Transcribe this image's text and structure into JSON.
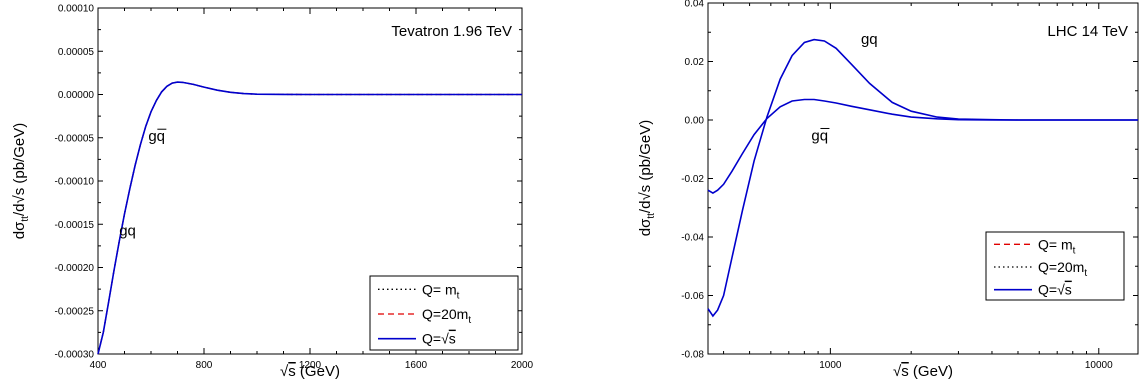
{
  "chart_data": [
    {
      "type": "line",
      "title": "Tevatron 1.96 TeV",
      "xlabel_radicand": "s",
      "xlabel_unit": "(GeV)",
      "ylabel_main": "dσ",
      "ylabel_sub": "tt",
      "ylabel_rest": "/d√s (pb/GeV)",
      "xscale": "linear",
      "xlim": [
        400,
        2000
      ],
      "ylim": [
        -0.0003,
        0.0001
      ],
      "x_ticks": [
        "400",
        "800",
        "1200",
        "1600",
        "2000"
      ],
      "y_ticks": [
        "0.00010",
        "0.00005",
        "0.00000",
        "-0.00005",
        "-0.00010",
        "-0.00015",
        "-0.00020",
        "-0.00025",
        "-0.00030"
      ],
      "legend_placement": "bottom-right",
      "legend": [
        {
          "label_prefix": "Q=  m",
          "label_sub": "t",
          "label_radicand": "",
          "style": "dotted",
          "color": "#000000"
        },
        {
          "label_prefix": "Q=20m",
          "label_sub": "t",
          "label_radicand": "",
          "style": "dashed",
          "color": "#e00000"
        },
        {
          "label_prefix": "Q=",
          "label_sub": "",
          "label_radicand": "s",
          "style": "solid",
          "color": "#0000cc"
        }
      ],
      "annotations": [
        {
          "text": "gq",
          "bar": true,
          "x": 590,
          "y": -5.4e-05
        },
        {
          "text": "gq",
          "bar": false,
          "x": 480,
          "y": -0.000163
        }
      ],
      "series": [
        {
          "style": "dotted",
          "color": "#000000",
          "x": [
            400,
            420,
            440,
            460,
            480,
            500,
            520,
            540,
            560,
            580,
            600,
            620,
            640,
            660,
            680,
            700,
            720,
            760,
            800,
            850,
            900,
            950,
            1000,
            1100,
            1200,
            1400,
            1600,
            2000
          ],
          "y": [
            -0.0003,
            -0.000275,
            -0.00024,
            -0.000204,
            -0.00017,
            -0.000138,
            -0.000109,
            -8.2e-05,
            -5.8e-05,
            -3.7e-05,
            -2e-05,
            -7e-06,
            3e-06,
            9.5e-06,
            1.32e-05,
            1.43e-05,
            1.4e-05,
            1.17e-05,
            8.5e-06,
            5e-06,
            2.5e-06,
            1e-06,
            4e-07,
            1e-07,
            0,
            0,
            0,
            0
          ]
        },
        {
          "style": "dashed",
          "color": "#e00000",
          "x": [
            400,
            420,
            440,
            460,
            480,
            500,
            520,
            540,
            560,
            580,
            600,
            620,
            640,
            660,
            680,
            700,
            720,
            760,
            800,
            850,
            900,
            950,
            1000,
            1100,
            1200,
            1400,
            1600,
            2000
          ],
          "y": [
            -0.0003,
            -0.000275,
            -0.00024,
            -0.000204,
            -0.00017,
            -0.000138,
            -0.000109,
            -8.2e-05,
            -5.8e-05,
            -3.7e-05,
            -2e-05,
            -7e-06,
            3e-06,
            9.5e-06,
            1.32e-05,
            1.43e-05,
            1.4e-05,
            1.17e-05,
            8.5e-06,
            5e-06,
            2.5e-06,
            1e-06,
            4e-07,
            1e-07,
            0,
            0,
            0,
            0
          ]
        },
        {
          "style": "solid",
          "color": "#0000cc",
          "x": [
            400,
            420,
            440,
            460,
            480,
            500,
            520,
            540,
            560,
            580,
            600,
            620,
            640,
            660,
            680,
            700,
            720,
            760,
            800,
            850,
            900,
            950,
            1000,
            1100,
            1200,
            1400,
            1600,
            2000
          ],
          "y": [
            -0.0003,
            -0.000275,
            -0.00024,
            -0.000204,
            -0.00017,
            -0.000138,
            -0.000109,
            -8.2e-05,
            -5.8e-05,
            -3.7e-05,
            -2e-05,
            -7e-06,
            3e-06,
            9.5e-06,
            1.32e-05,
            1.43e-05,
            1.4e-05,
            1.17e-05,
            8.5e-06,
            5e-06,
            2.5e-06,
            1e-06,
            4e-07,
            1e-07,
            0,
            0,
            0,
            0
          ]
        }
      ]
    },
    {
      "type": "line",
      "title": "LHC 14 TeV",
      "xlabel_radicand": "s",
      "xlabel_unit": "(GeV)",
      "ylabel_main": "dσ",
      "ylabel_sub": "tt",
      "ylabel_rest": "/d√s (pb/GeV)",
      "xscale": "log",
      "xlim": [
        350,
        14000
      ],
      "ylim": [
        -0.08,
        0.04
      ],
      "x_ticks": [
        "1000",
        "10000"
      ],
      "y_ticks": [
        "0.04",
        "0.02",
        "0.00",
        "-0.02",
        "-0.04",
        "-0.06",
        "-0.08"
      ],
      "legend_placement": "bottom-right",
      "legend": [
        {
          "label_prefix": "Q= m",
          "label_sub": "t",
          "label_radicand": "",
          "style": "dashed",
          "color": "#e00000"
        },
        {
          "label_prefix": "Q=20m",
          "label_sub": "t",
          "label_radicand": "",
          "style": "dotted",
          "color": "#000000"
        },
        {
          "label_prefix": "Q=",
          "label_sub": "",
          "label_radicand": "s",
          "style": "solid",
          "color": "#0000cc"
        }
      ],
      "annotations": [
        {
          "text": "gq",
          "bar": false,
          "x": 1300,
          "y": 0.026
        },
        {
          "text": "gq",
          "bar": true,
          "x": 850,
          "y": -0.007
        }
      ],
      "series": [
        {
          "name": "gq",
          "style": "solid",
          "color": "#0000cc",
          "x": [
            350,
            365,
            380,
            400,
            430,
            470,
            520,
            580,
            650,
            720,
            800,
            870,
            950,
            1050,
            1200,
            1400,
            1700,
            2000,
            2500,
            3000,
            4000,
            5000,
            7000,
            10000,
            14000
          ],
          "y": [
            -0.0645,
            -0.067,
            -0.065,
            -0.06,
            -0.047,
            -0.031,
            -0.014,
            0.001,
            0.014,
            0.022,
            0.0265,
            0.0275,
            0.027,
            0.0245,
            0.019,
            0.0125,
            0.006,
            0.003,
            0.001,
            0.0003,
            0.0001,
            0,
            0,
            0,
            0
          ]
        },
        {
          "name": "gq",
          "style": "solid",
          "color": "#0000cc",
          "x": [
            350,
            365,
            380,
            400,
            430,
            470,
            520,
            580,
            650,
            720,
            800,
            870,
            950,
            1050,
            1200,
            1400,
            1700,
            2000,
            2500,
            3000,
            4000,
            5000,
            7000,
            10000,
            14000
          ],
          "y": [
            -0.024,
            -0.025,
            -0.024,
            -0.022,
            -0.0175,
            -0.0115,
            -0.005,
            0.0005,
            0.0045,
            0.0065,
            0.007,
            0.007,
            0.0065,
            0.0058,
            0.0047,
            0.0035,
            0.002,
            0.001,
            0.0004,
            0.0001,
            0,
            0,
            0,
            0,
            0
          ]
        }
      ]
    }
  ]
}
